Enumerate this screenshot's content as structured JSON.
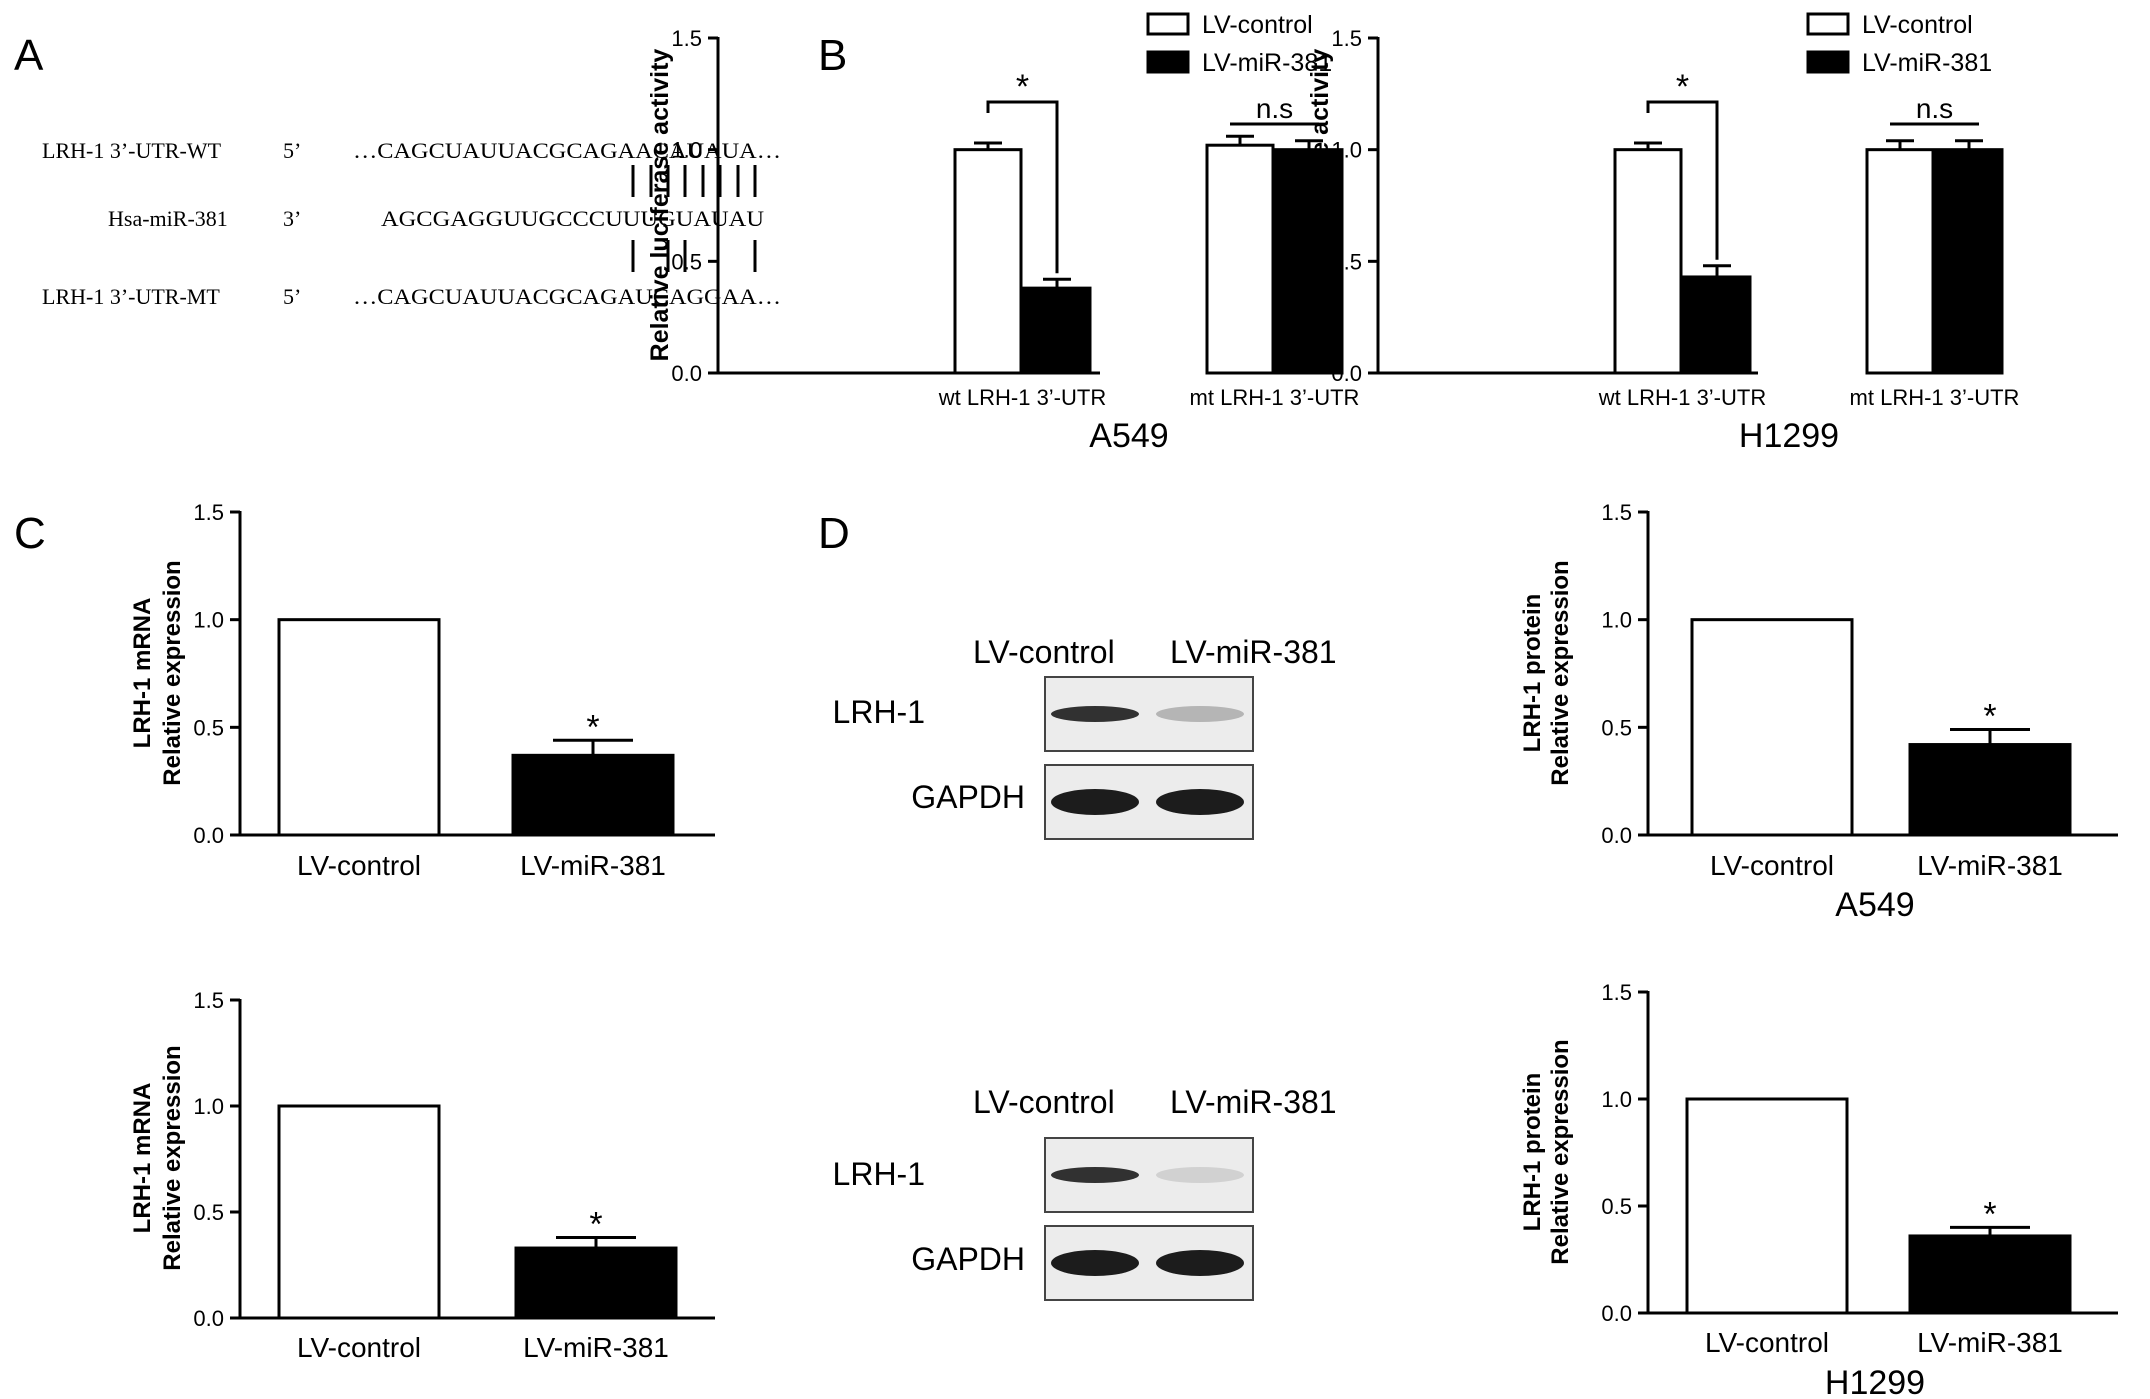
{
  "panel_labels": {
    "a": "A",
    "b": "B",
    "c": "C",
    "d": "D"
  },
  "sequences": {
    "rows": [
      {
        "name": "LRH-1 3’-UTR-WT",
        "end": "5’",
        "seq": "…CAGCUAUUACGCAGAACAUAUA…"
      },
      {
        "name": "Hsa-miR-381",
        "end": "3’",
        "seq": "AGCGAGGUUGCCCUUUGUAUAU"
      },
      {
        "name": "LRH-1 3’-UTR-MT",
        "end": "5’",
        "seq": "…CAGCUAUUACGCAGAUCAGGAA…"
      }
    ]
  },
  "legend": {
    "control": "LV-control",
    "mir": "LV-miR-381"
  },
  "blots": {
    "top": {
      "lanes": [
        "LV-control",
        "LV-miR-381"
      ],
      "rows": [
        "LRH-1",
        "GAPDH"
      ],
      "lrh1_intensity": [
        0.85,
        0.25
      ]
    },
    "bottom": {
      "lanes": [
        "LV-control",
        "LV-miR-381"
      ],
      "rows": [
        "LRH-1",
        "GAPDH"
      ],
      "lrh1_intensity": [
        0.85,
        0.12
      ]
    }
  },
  "chart_data": [
    {
      "id": "b_a549",
      "type": "bar",
      "panel": "B",
      "ylabel": "Relative luciferase activity",
      "xtitle": "A549",
      "ylim": [
        0,
        1.5
      ],
      "yticks": [
        "0.0",
        "0.5",
        "1.0",
        "1.5"
      ],
      "categories": [
        "wt LRH-1 3’-UTR",
        "mt LRH-1 3’-UTR"
      ],
      "series": [
        {
          "name": "LV-control",
          "values": [
            1.0,
            1.02
          ],
          "errors": [
            0.03,
            0.04
          ],
          "fill": "#ffffff"
        },
        {
          "name": "LV-miR-381",
          "values": [
            0.38,
            1.0
          ],
          "errors": [
            0.04,
            0.04
          ],
          "fill": "#000000"
        }
      ],
      "annotations": [
        {
          "group": 0,
          "text": "*"
        },
        {
          "group": 1,
          "text": "n.s"
        }
      ],
      "legend": "top"
    },
    {
      "id": "b_h1299",
      "type": "bar",
      "panel": "B",
      "ylabel": "Relative luciferase activity",
      "xtitle": "H1299",
      "ylim": [
        0,
        1.5
      ],
      "yticks": [
        "0.0",
        "0.5",
        "1.0",
        "1.5"
      ],
      "categories": [
        "wt LRH-1 3’-UTR",
        "mt LRH-1 3’-UTR"
      ],
      "series": [
        {
          "name": "LV-control",
          "values": [
            1.0,
            1.0
          ],
          "errors": [
            0.03,
            0.04
          ],
          "fill": "#ffffff"
        },
        {
          "name": "LV-miR-381",
          "values": [
            0.43,
            1.0
          ],
          "errors": [
            0.05,
            0.04
          ],
          "fill": "#000000"
        }
      ],
      "annotations": [
        {
          "group": 0,
          "text": "*"
        },
        {
          "group": 1,
          "text": "n.s"
        }
      ],
      "legend": "top"
    },
    {
      "id": "c_top",
      "type": "bar",
      "panel": "C",
      "ylabel": [
        "LRH-1 mRNA",
        "Relative expression"
      ],
      "xtitle": "",
      "ylim": [
        0,
        1.5
      ],
      "yticks": [
        "0.0",
        "0.5",
        "1.0",
        "1.5"
      ],
      "categories": [
        "LV-control",
        "LV-miR-381"
      ],
      "values": [
        1.0,
        0.37
      ],
      "errors": [
        0.0,
        0.07
      ],
      "fills": [
        "#ffffff",
        "#000000"
      ],
      "annotations": [
        {
          "index": 1,
          "text": "*"
        }
      ]
    },
    {
      "id": "c_bottom",
      "type": "bar",
      "panel": "C",
      "ylabel": [
        "LRH-1 mRNA",
        "Relative expression"
      ],
      "xtitle": "",
      "ylim": [
        0,
        1.5
      ],
      "yticks": [
        "0.0",
        "0.5",
        "1.0",
        "1.5"
      ],
      "categories": [
        "LV-control",
        "LV-miR-381"
      ],
      "values": [
        1.0,
        0.33
      ],
      "errors": [
        0.0,
        0.05
      ],
      "fills": [
        "#ffffff",
        "#000000"
      ],
      "annotations": [
        {
          "index": 1,
          "text": "*"
        }
      ]
    },
    {
      "id": "d_a549",
      "type": "bar",
      "panel": "D",
      "ylabel": [
        "LRH-1 protein",
        "Relative expression"
      ],
      "xtitle": "A549",
      "ylim": [
        0,
        1.5
      ],
      "yticks": [
        "0.0",
        "0.5",
        "1.0",
        "1.5"
      ],
      "categories": [
        "LV-control",
        "LV-miR-381"
      ],
      "values": [
        1.0,
        0.42
      ],
      "errors": [
        0.0,
        0.07
      ],
      "fills": [
        "#ffffff",
        "#000000"
      ],
      "annotations": [
        {
          "index": 1,
          "text": "*"
        }
      ]
    },
    {
      "id": "d_h1299",
      "type": "bar",
      "panel": "D",
      "ylabel": [
        "LRH-1 protein",
        "Relative expression"
      ],
      "xtitle": "H1299",
      "ylim": [
        0,
        1.5
      ],
      "yticks": [
        "0.0",
        "0.5",
        "1.0",
        "1.5"
      ],
      "categories": [
        "LV-control",
        "LV-miR-381"
      ],
      "values": [
        1.0,
        0.36
      ],
      "errors": [
        0.0,
        0.04
      ],
      "fills": [
        "#ffffff",
        "#000000"
      ],
      "annotations": [
        {
          "index": 1,
          "text": "*"
        }
      ]
    }
  ]
}
